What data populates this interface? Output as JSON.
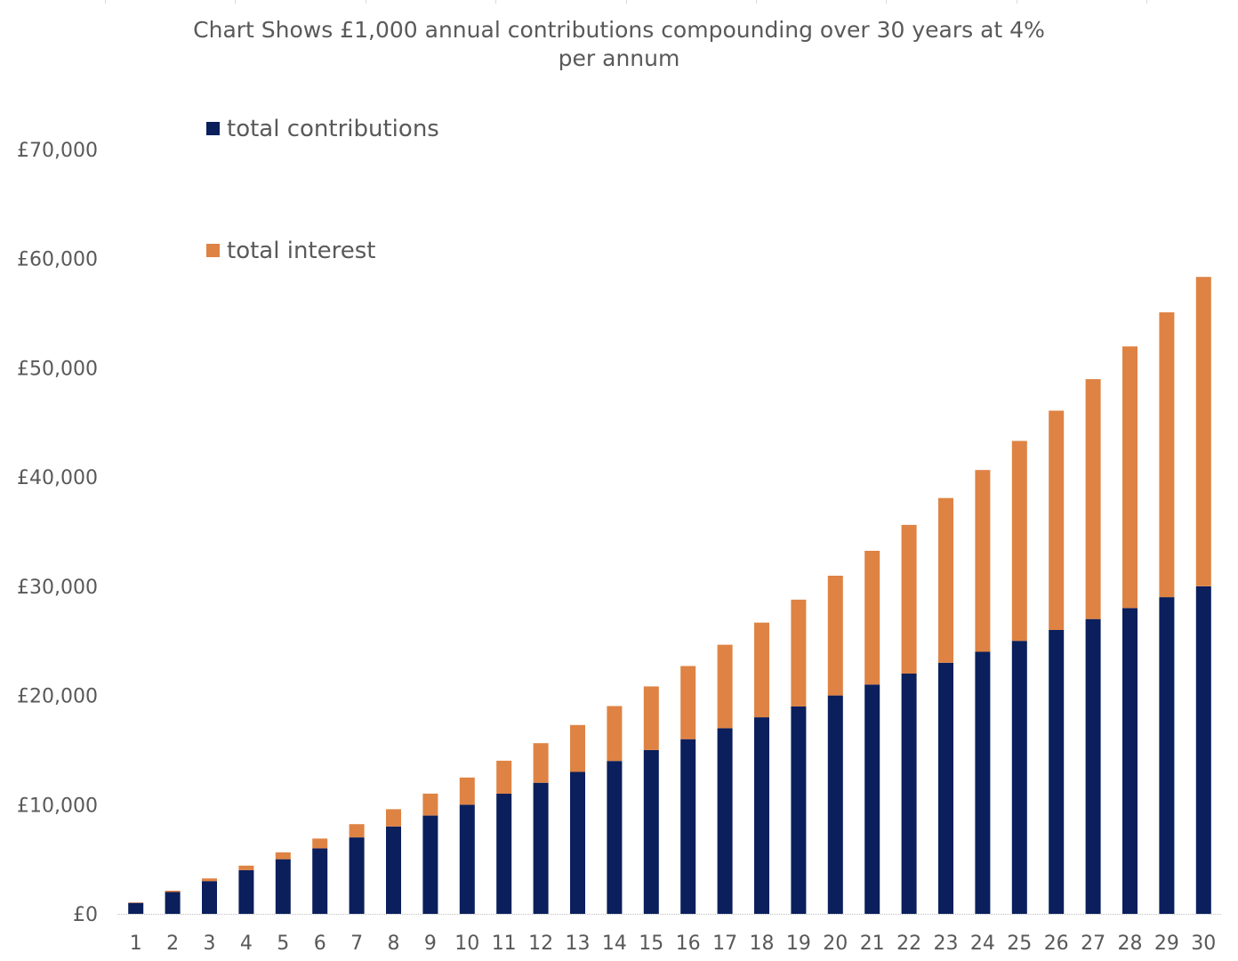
{
  "chart_data": {
    "type": "bar",
    "stacked": true,
    "title_lines": [
      "Chart Shows £1,000 annual contributions compounding over 30 years at 4%",
      "per annum"
    ],
    "xlabel": "",
    "ylabel": "",
    "categories": [
      "1",
      "2",
      "3",
      "4",
      "5",
      "6",
      "7",
      "8",
      "9",
      "10",
      "11",
      "12",
      "13",
      "14",
      "15",
      "16",
      "17",
      "18",
      "19",
      "20",
      "21",
      "22",
      "23",
      "24",
      "25",
      "26",
      "27",
      "28",
      "29",
      "30"
    ],
    "series": [
      {
        "name": "total contributions",
        "color": "#0A1F5C",
        "values": [
          1000,
          2000,
          3000,
          4000,
          5000,
          6000,
          7000,
          8000,
          9000,
          10000,
          11000,
          12000,
          13000,
          14000,
          15000,
          16000,
          17000,
          18000,
          19000,
          20000,
          21000,
          22000,
          23000,
          24000,
          25000,
          26000,
          27000,
          28000,
          29000,
          30000
        ]
      },
      {
        "name": "total interest",
        "color": "#DE8344",
        "values": [
          40,
          122,
          246,
          416,
          633,
          898,
          1214,
          1583,
          2006,
          2486,
          3026,
          3627,
          4292,
          5024,
          5825,
          6698,
          7645,
          8671,
          9778,
          10969,
          12248,
          13618,
          15083,
          16646,
          18312,
          20084,
          21968,
          23966,
          26085,
          28328
        ]
      }
    ],
    "yticks": [
      0,
      10000,
      20000,
      30000,
      40000,
      50000,
      60000,
      70000
    ],
    "ytick_labels": [
      "£0",
      "£10,000",
      "£20,000",
      "£30,000",
      "£40,000",
      "£50,000",
      "£60,000",
      "£70,000"
    ],
    "ylim": [
      0,
      70000
    ],
    "grid": false,
    "legend_position": "top-left"
  }
}
